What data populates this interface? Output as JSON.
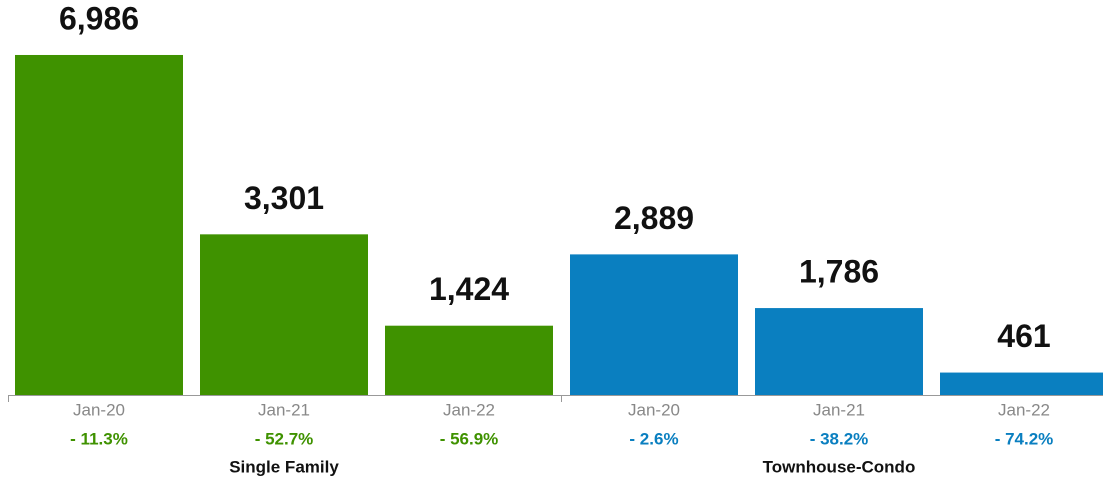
{
  "chart_data": {
    "type": "bar",
    "ylim": [
      0,
      7000
    ],
    "groups": [
      {
        "name": "Single Family",
        "color": "#3f9200",
        "categories": [
          "Jan-20",
          "Jan-21",
          "Jan-22"
        ],
        "values": [
          6986,
          3301,
          1424
        ],
        "value_labels": [
          "6,986",
          "3,301",
          "1,424"
        ],
        "changes": [
          "- 11.3%",
          "- 52.7%",
          "- 56.9%"
        ]
      },
      {
        "name": "Townhouse-Condo",
        "color": "#0a7fc0",
        "categories": [
          "Jan-20",
          "Jan-21",
          "Jan-22"
        ],
        "values": [
          2889,
          1786,
          461
        ],
        "value_labels": [
          "2,889",
          "1,786",
          "461"
        ],
        "changes": [
          "- 2.6%",
          "- 38.2%",
          "- 74.2%"
        ]
      }
    ]
  }
}
